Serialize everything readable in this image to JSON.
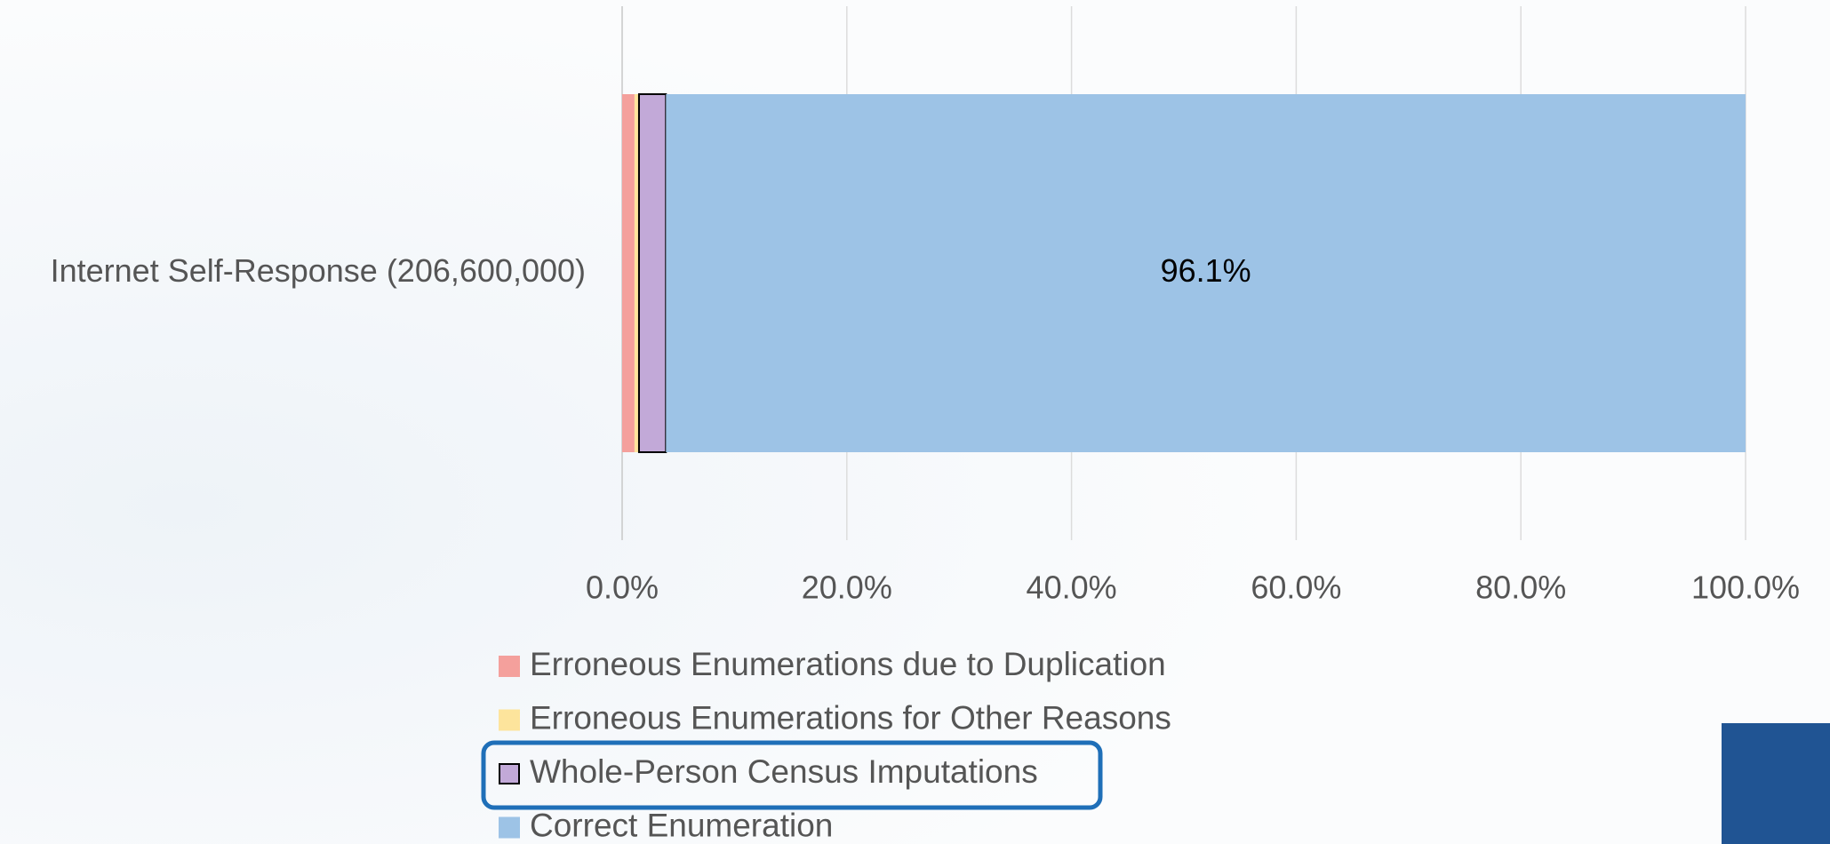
{
  "chart_data": {
    "type": "stacked-bar-horizontal",
    "categories": [
      "Internet Self-Response (206,600,000)"
    ],
    "series": [
      {
        "name": "Erroneous Enumerations due to Duplication",
        "color": "#f4a09c",
        "values": [
          1.1
        ]
      },
      {
        "name": "Erroneous Enumerations for Other Reasons",
        "color": "#fde49c",
        "values": [
          0.4
        ]
      },
      {
        "name": "Whole-Person Census Imputations",
        "color": "#c2a9d8",
        "values": [
          2.4
        ]
      },
      {
        "name": "Correct Enumeration",
        "color": "#9dc3e6",
        "values": [
          96.1
        ],
        "value_labels": [
          "96.1%"
        ]
      }
    ],
    "xlim": [
      0,
      100
    ],
    "xticks": [
      {
        "value": 0,
        "label": "0.0%"
      },
      {
        "value": 20,
        "label": "20.0%"
      },
      {
        "value": 40,
        "label": "40.0%"
      },
      {
        "value": 60,
        "label": "60.0%"
      },
      {
        "value": 80,
        "label": "80.0%"
      },
      {
        "value": 100,
        "label": "100.0%"
      }
    ],
    "grid": true,
    "legend": "bottom"
  }
}
